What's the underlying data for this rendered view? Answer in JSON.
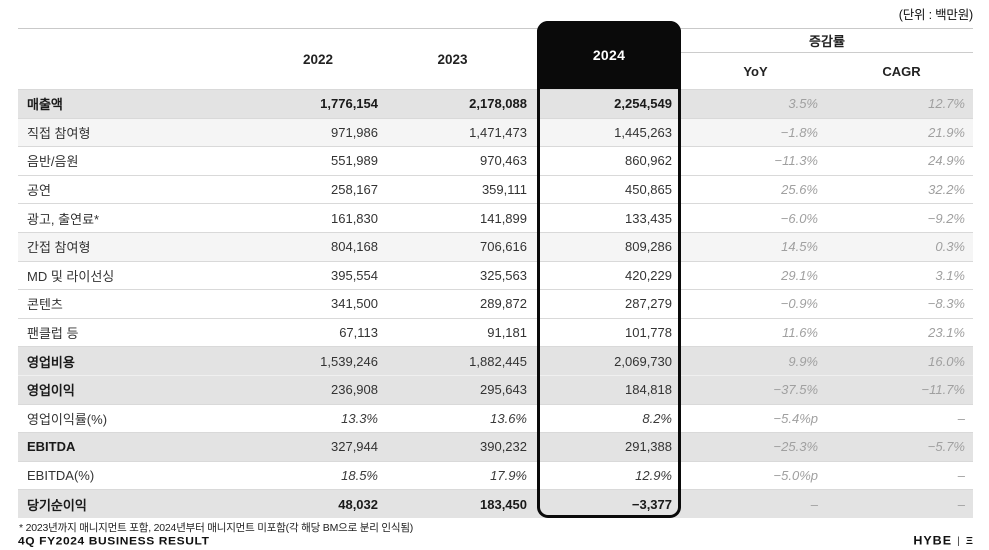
{
  "unit_note": "(단위 : 백만원)",
  "colors": {
    "highlight_column": "#0a0a0a",
    "band_row_bg": "#e3e3e3",
    "subgroup_row_bg": "#f5f5f5",
    "muted_value_text": "#a0a0a0"
  },
  "table": {
    "headers": {
      "y2022": "2022",
      "y2023": "2023",
      "y2024": "2024",
      "change_group": "증감률",
      "yoy": "YoY",
      "cagr": "CAGR"
    },
    "rows": [
      {
        "label": "매출액",
        "y2022": "1,776,154",
        "y2023": "2,178,088",
        "y2024": "2,254,549",
        "yoy": "3.5%",
        "cagr": "12.7%",
        "style": "total"
      },
      {
        "label": "직접 참여형",
        "y2022": "971,986",
        "y2023": "1,471,473",
        "y2024": "1,445,263",
        "yoy": "−1.8%",
        "cagr": "21.9%",
        "style": "subgroup"
      },
      {
        "label": "음반/음원",
        "y2022": "551,989",
        "y2023": "970,463",
        "y2024": "860,962",
        "yoy": "−11.3%",
        "cagr": "24.9%",
        "style": "item"
      },
      {
        "label": "공연",
        "y2022": "258,167",
        "y2023": "359,111",
        "y2024": "450,865",
        "yoy": "25.6%",
        "cagr": "32.2%",
        "style": "item"
      },
      {
        "label": "광고, 출연료*",
        "y2022": "161,830",
        "y2023": "141,899",
        "y2024": "133,435",
        "yoy": "−6.0%",
        "cagr": "−9.2%",
        "style": "item"
      },
      {
        "label": "간접 참여형",
        "y2022": "804,168",
        "y2023": "706,616",
        "y2024": "809,286",
        "yoy": "14.5%",
        "cagr": "0.3%",
        "style": "subgroup"
      },
      {
        "label": "MD 및 라이선싱",
        "y2022": "395,554",
        "y2023": "325,563",
        "y2024": "420,229",
        "yoy": "29.1%",
        "cagr": "3.1%",
        "style": "item"
      },
      {
        "label": "콘텐츠",
        "y2022": "341,500",
        "y2023": "289,872",
        "y2024": "287,279",
        "yoy": "−0.9%",
        "cagr": "−8.3%",
        "style": "item"
      },
      {
        "label": "팬클럽 등",
        "y2022": "67,113",
        "y2023": "91,181",
        "y2024": "101,778",
        "yoy": "11.6%",
        "cagr": "23.1%",
        "style": "item"
      },
      {
        "label": "영업비용",
        "y2022": "1,539,246",
        "y2023": "1,882,445",
        "y2024": "2,069,730",
        "yoy": "9.9%",
        "cagr": "16.0%",
        "style": "grayhead"
      },
      {
        "label": "영업이익",
        "y2022": "236,908",
        "y2023": "295,643",
        "y2024": "184,818",
        "yoy": "−37.5%",
        "cagr": "−11.7%",
        "style": "grayhead",
        "light_divider": true
      },
      {
        "label": "영업이익률(%)",
        "y2022": "13.3%",
        "y2023": "13.6%",
        "y2024": "8.2%",
        "yoy": "−5.4%p",
        "cagr": "–",
        "style": "ratio"
      },
      {
        "label": "EBITDA",
        "y2022": "327,944",
        "y2023": "390,232",
        "y2024": "291,388",
        "yoy": "−25.3%",
        "cagr": "−5.7%",
        "style": "grayhead"
      },
      {
        "label": "EBITDA(%)",
        "y2022": "18.5%",
        "y2023": "17.9%",
        "y2024": "12.9%",
        "yoy": "−5.0%p",
        "cagr": "–",
        "style": "ratio"
      },
      {
        "label": "당기순이익",
        "y2022": "48,032",
        "y2023": "183,450",
        "y2024": "−3,377",
        "yoy": "–",
        "cagr": "–",
        "style": "total"
      }
    ]
  },
  "footnote": "* 2023년까지 매니지먼트 포함, 2024년부터 매니지먼트 미포함(각 해당 BM으로 분리 인식됨)",
  "footer": {
    "left": "4Q FY2024 BUSINESS RESULT",
    "brand": "HYBE",
    "separator": "|",
    "brand_icon": "Ξ"
  }
}
